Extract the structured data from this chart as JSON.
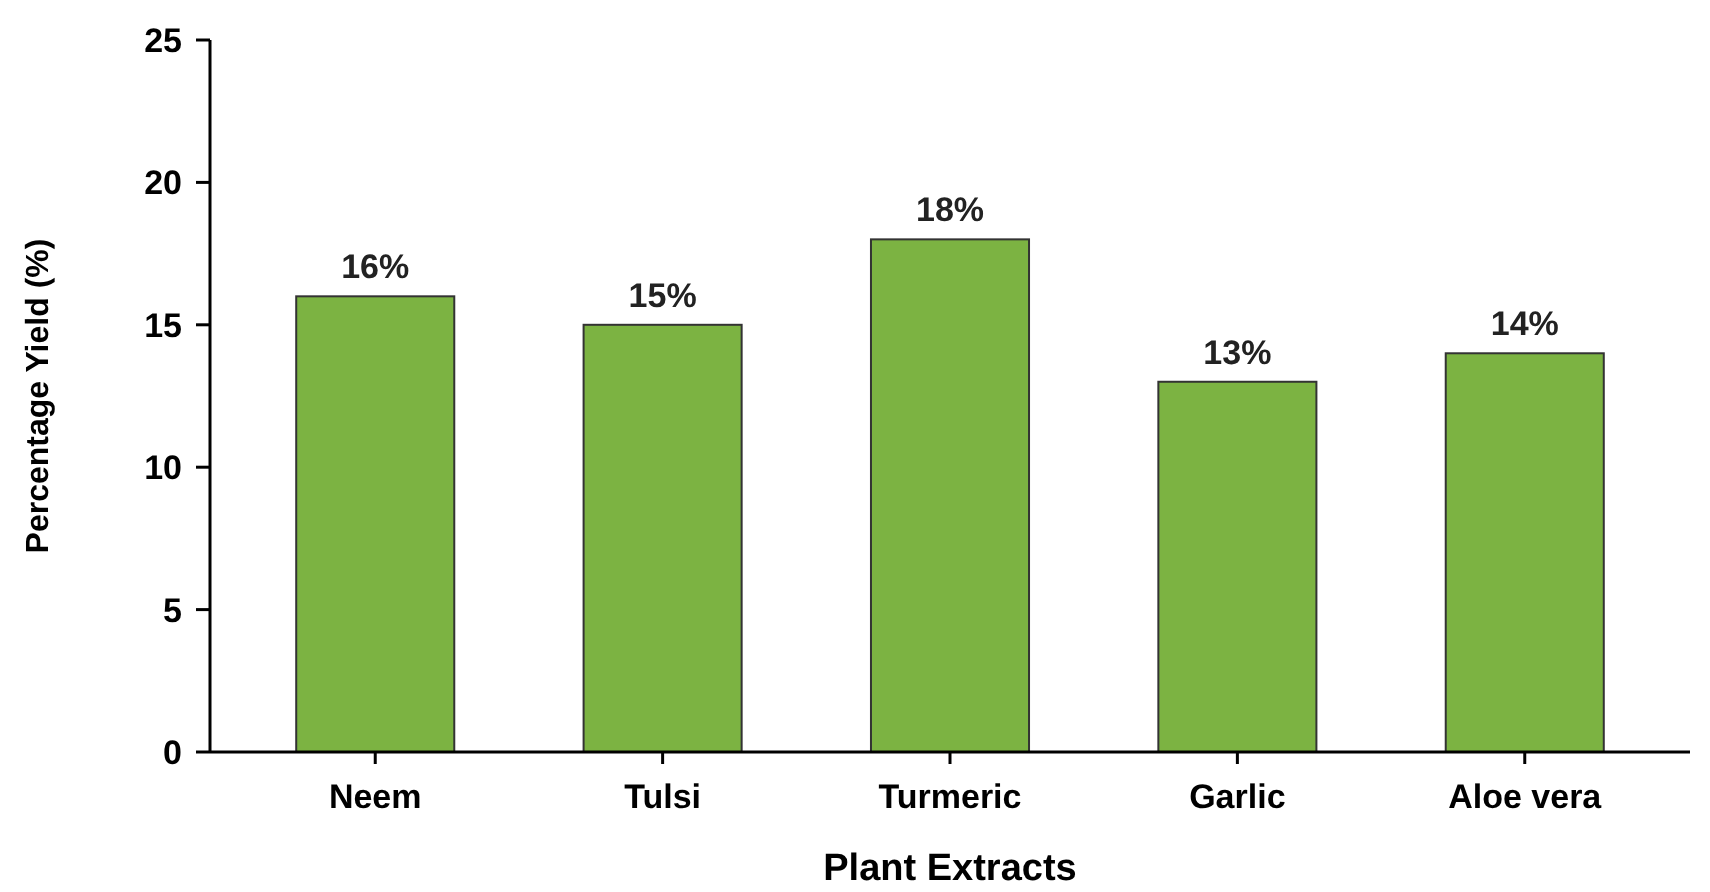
{
  "chart_data": {
    "type": "bar",
    "xlabel": "Plant Extracts",
    "ylabel": "Percentage Yield (%)",
    "categories": [
      "Neem",
      "Tulsi",
      "Turmeric",
      "Garlic",
      "Aloe vera"
    ],
    "values": [
      16,
      15,
      18,
      13,
      14
    ],
    "value_labels": [
      "16%",
      "15%",
      "18%",
      "13%",
      "14%"
    ],
    "color": "#7cb342",
    "ylim": [
      0,
      25
    ],
    "yticks": [
      0,
      5,
      10,
      15,
      20,
      25
    ],
    "grid": false
  }
}
